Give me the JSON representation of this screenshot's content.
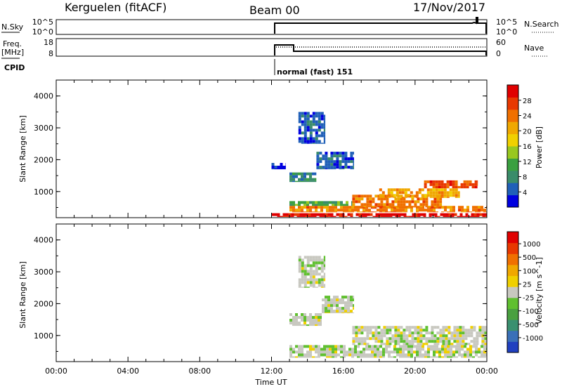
{
  "header": {
    "station": "Kerguelen (fitACF)",
    "beam": "Beam 00",
    "date": "17/Nov/2017"
  },
  "top_panels": {
    "nsky_label": "N.Sky",
    "nsky_ticks": [
      "10^5",
      "10^0"
    ],
    "nsearch_label": "N.Search",
    "nsearch_ticks": [
      "10^5",
      "10^0"
    ],
    "freq_label_1": "Freq.",
    "freq_label_2": "[MHz]",
    "freq_ticks": [
      "18",
      "8"
    ],
    "nave_label": "Nave",
    "nave_ticks": [
      "60",
      "0"
    ],
    "cpid_label": "CPID",
    "cpid_text": "normal (fast) 151"
  },
  "chart_data": [
    {
      "type": "heatmap",
      "name": "power",
      "ylabel": "Slant Range [km]",
      "ylim": [
        180,
        4500
      ],
      "yticks": [
        "1000",
        "2000",
        "3000",
        "4000"
      ],
      "xlim": [
        0,
        24
      ],
      "colorbar": {
        "label": "Power [dB]",
        "ticks": [
          "4",
          "8",
          "12",
          "16",
          "20",
          "24",
          "28"
        ],
        "colors": [
          "#0000e0",
          "#2060b8",
          "#3a8c6a",
          "#3aa040",
          "#98c820",
          "#f0d000",
          "#f0a800",
          "#f07000",
          "#e83800",
          "#e00000"
        ]
      },
      "regions": [
        {
          "t": [
            12.0,
            24.0
          ],
          "r": [
            200,
            320
          ],
          "color": "#e00000"
        },
        {
          "t": [
            13.0,
            24.0
          ],
          "r": [
            350,
            550
          ],
          "color": "#f07000"
        },
        {
          "t": [
            13.0,
            16.5
          ],
          "r": [
            550,
            700
          ],
          "color": "#3aa040"
        },
        {
          "t": [
            16.5,
            21.5
          ],
          "r": [
            500,
            900
          ],
          "color": "#f07000"
        },
        {
          "t": [
            18.0,
            22.5
          ],
          "r": [
            800,
            1100
          ],
          "color": "#f0a800"
        },
        {
          "t": [
            20.5,
            23.5
          ],
          "r": [
            1100,
            1350
          ],
          "color": "#e83800"
        },
        {
          "t": [
            13.0,
            14.5
          ],
          "r": [
            1300,
            1600
          ],
          "color": "#3a8c6a"
        },
        {
          "t": [
            14.5,
            16.6
          ],
          "r": [
            1700,
            2250
          ],
          "color": "#2060b8"
        },
        {
          "t": [
            12.0,
            12.8
          ],
          "r": [
            1700,
            1900
          ],
          "color": "#0000e0"
        },
        {
          "t": [
            13.5,
            15.0
          ],
          "r": [
            2500,
            3500
          ],
          "color": "#2060b8"
        }
      ]
    },
    {
      "type": "heatmap",
      "name": "velocity",
      "ylabel": "Slant Range [km]",
      "ylim": [
        180,
        4500
      ],
      "yticks": [
        "1000",
        "2000",
        "3000",
        "4000"
      ],
      "xlim": [
        0,
        24
      ],
      "xticks": [
        "00:00",
        "04:00",
        "08:00",
        "12:00",
        "16:00",
        "20:00",
        "00:00"
      ],
      "xlabel": "Time UT",
      "colorbar": {
        "label": "Velocity [m s^-1]",
        "ticks": [
          "1000",
          "500",
          "100",
          "25",
          "-25",
          "-100",
          "-500",
          "-1000"
        ],
        "colors": [
          "#2040c0",
          "#3a70b8",
          "#3a9070",
          "#4aa040",
          "#60c030",
          "#c8c8c0",
          "#f0d000",
          "#f0a800",
          "#f07000",
          "#e83800",
          "#e00000"
        ]
      },
      "regions": [
        {
          "t": [
            13.0,
            24.0
          ],
          "r": [
            300,
            700
          ],
          "color": "#c8c8c0"
        },
        {
          "t": [
            16.5,
            24.0
          ],
          "r": [
            700,
            1300
          ],
          "color": "#c8c8c0"
        },
        {
          "t": [
            13.0,
            14.8
          ],
          "r": [
            1300,
            1700
          ],
          "color": "#c8c8c0"
        },
        {
          "t": [
            14.8,
            16.6
          ],
          "r": [
            1700,
            2250
          ],
          "color": "#c8c8c0"
        },
        {
          "t": [
            13.5,
            15.0
          ],
          "r": [
            2500,
            3500
          ],
          "color": "#c8c8c0"
        }
      ]
    }
  ]
}
